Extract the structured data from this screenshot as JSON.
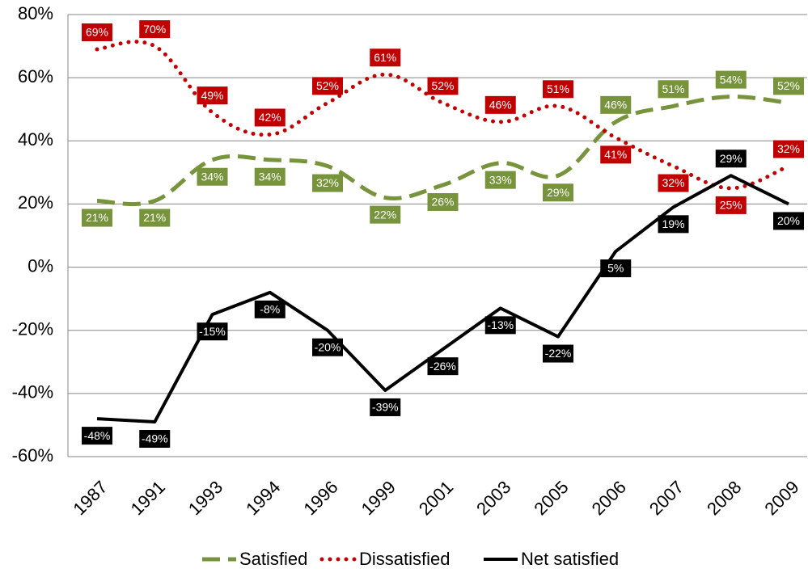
{
  "chart_data": {
    "type": "line",
    "categories": [
      "1987",
      "1991",
      "1993",
      "1994",
      "1996",
      "1999",
      "2001",
      "2003",
      "2005",
      "2006",
      "2007",
      "2008",
      "2009"
    ],
    "series": [
      {
        "name": "Satisfied",
        "color": "#77933c",
        "style": "dashed",
        "smooth": true,
        "values": [
          21,
          21,
          34,
          34,
          32,
          22,
          26,
          33,
          29,
          46,
          51,
          54,
          52
        ],
        "value_labels": [
          "21%",
          "21%",
          "34%",
          "34%",
          "32%",
          "22%",
          "26%",
          "33%",
          "29%",
          "46%",
          "51%",
          "54%",
          "52%"
        ]
      },
      {
        "name": "Dissatisfied",
        "color": "#c00000",
        "style": "dotted",
        "smooth": true,
        "values": [
          69,
          70,
          49,
          42,
          52,
          61,
          52,
          46,
          51,
          41,
          32,
          25,
          32
        ],
        "value_labels": [
          "69%",
          "70%",
          "49%",
          "42%",
          "52%",
          "61%",
          "52%",
          "46%",
          "51%",
          "41%",
          "32%",
          "25%",
          "32%"
        ]
      },
      {
        "name": "Net satisfied",
        "color": "#000000",
        "style": "solid",
        "smooth": false,
        "values": [
          -48,
          -49,
          -15,
          -8,
          -20,
          -39,
          -26,
          -13,
          -22,
          5,
          19,
          29,
          20
        ],
        "value_labels": [
          "-48%",
          "-49%",
          "-15%",
          "-8%",
          "-20%",
          "-39%",
          "-26%",
          "-13%",
          "-22%",
          "5%",
          "19%",
          "29%",
          "20%"
        ]
      }
    ],
    "ylim": [
      -60,
      80
    ],
    "yticks": [
      {
        "value": -60,
        "label": "-60%"
      },
      {
        "value": -40,
        "label": "-40%"
      },
      {
        "value": -20,
        "label": "-20%"
      },
      {
        "value": 0,
        "label": "0%"
      },
      {
        "value": 20,
        "label": "20%"
      },
      {
        "value": 40,
        "label": "40%"
      },
      {
        "value": 60,
        "label": "60%"
      },
      {
        "value": 80,
        "label": "80%"
      }
    ],
    "grid": true,
    "legend": "bottom"
  }
}
